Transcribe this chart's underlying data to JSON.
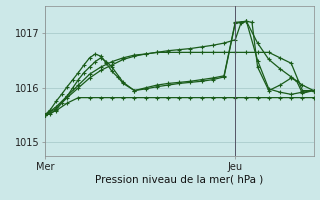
{
  "title": "",
  "xlabel": "Pression niveau de la mer( hPa )",
  "bg_color": "#cce8e8",
  "grid_color": "#aacccc",
  "line_color": "#1a5c1a",
  "xlim": [
    0,
    48
  ],
  "ylim": [
    1014.75,
    1017.5
  ],
  "yticks": [
    1015,
    1016,
    1017
  ],
  "xtick_positions": [
    0,
    34
  ],
  "xtick_labels": [
    "Mer",
    "Jeu"
  ],
  "vline_x": 34,
  "lines": [
    {
      "x": [
        0,
        1,
        2,
        3,
        4,
        5,
        6,
        7,
        8,
        9,
        10,
        11,
        12,
        13,
        14,
        16,
        18,
        20,
        22,
        24,
        26,
        28,
        30,
        32,
        34,
        36,
        38,
        40,
        42,
        44,
        46,
        48
      ],
      "y": [
        1015.5,
        1015.6,
        1015.75,
        1015.88,
        1016.02,
        1016.15,
        1016.28,
        1016.42,
        1016.55,
        1016.62,
        1016.58,
        1016.45,
        1016.3,
        1016.2,
        1016.08,
        1015.95,
        1016.0,
        1016.05,
        1016.08,
        1016.1,
        1016.12,
        1016.15,
        1016.18,
        1016.22,
        1017.2,
        1017.22,
        1016.5,
        1015.98,
        1015.92,
        1015.88,
        1015.92,
        1015.95
      ]
    },
    {
      "x": [
        0,
        1,
        2,
        3,
        4,
        5,
        6,
        7,
        8,
        9,
        10,
        11,
        12,
        14,
        16,
        18,
        20,
        22,
        24,
        26,
        28,
        30,
        32,
        34,
        36,
        37,
        38,
        40,
        42,
        44,
        45,
        46,
        48
      ],
      "y": [
        1015.5,
        1015.52,
        1015.6,
        1015.72,
        1015.85,
        1016.0,
        1016.15,
        1016.28,
        1016.38,
        1016.48,
        1016.55,
        1016.48,
        1016.38,
        1016.1,
        1015.95,
        1015.98,
        1016.02,
        1016.05,
        1016.08,
        1016.1,
        1016.12,
        1016.15,
        1016.2,
        1017.18,
        1017.22,
        1017.2,
        1016.38,
        1015.95,
        1016.05,
        1016.18,
        1016.12,
        1015.9,
        1015.95
      ]
    },
    {
      "x": [
        0,
        2,
        4,
        6,
        8,
        10,
        12,
        14,
        16,
        18,
        20,
        22,
        24,
        26,
        28,
        30,
        32,
        34,
        35,
        36,
        38,
        40,
        42,
        44,
        46,
        48
      ],
      "y": [
        1015.5,
        1015.62,
        1015.82,
        1016.0,
        1016.18,
        1016.32,
        1016.42,
        1016.52,
        1016.58,
        1016.62,
        1016.65,
        1016.68,
        1016.7,
        1016.72,
        1016.75,
        1016.78,
        1016.82,
        1016.88,
        1017.18,
        1017.22,
        1016.82,
        1016.52,
        1016.35,
        1016.2,
        1016.05,
        1015.95
      ]
    },
    {
      "x": [
        0,
        2,
        4,
        6,
        8,
        10,
        12,
        14,
        16,
        18,
        20,
        22,
        24,
        26,
        28,
        30,
        32,
        34,
        36,
        38,
        40,
        42,
        44,
        46,
        48
      ],
      "y": [
        1015.5,
        1015.65,
        1015.85,
        1016.05,
        1016.25,
        1016.38,
        1016.48,
        1016.55,
        1016.6,
        1016.62,
        1016.65,
        1016.65,
        1016.65,
        1016.65,
        1016.65,
        1016.65,
        1016.65,
        1016.65,
        1016.65,
        1016.65,
        1016.65,
        1016.55,
        1016.45,
        1015.95,
        1015.95
      ]
    },
    {
      "x": [
        0,
        2,
        4,
        6,
        8,
        10,
        12,
        14,
        16,
        18,
        20,
        22,
        24,
        26,
        28,
        30,
        32,
        34,
        36,
        38,
        40,
        42,
        44,
        46,
        48
      ],
      "y": [
        1015.5,
        1015.58,
        1015.72,
        1015.82,
        1015.82,
        1015.82,
        1015.82,
        1015.82,
        1015.82,
        1015.82,
        1015.82,
        1015.82,
        1015.82,
        1015.82,
        1015.82,
        1015.82,
        1015.82,
        1015.82,
        1015.82,
        1015.82,
        1015.82,
        1015.82,
        1015.82,
        1015.82,
        1015.82
      ]
    }
  ]
}
